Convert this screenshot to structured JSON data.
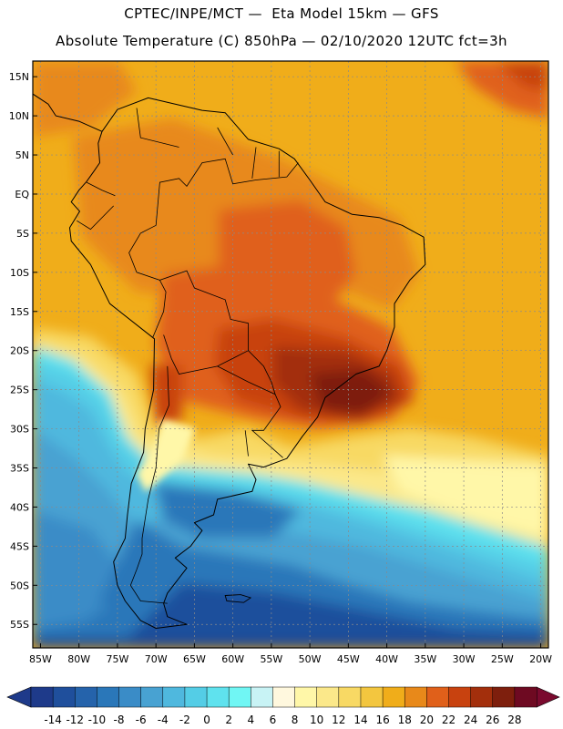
{
  "header": {
    "line1": "CPTEC/INPE/MCT —  Eta Model 15km — GFS",
    "line2": "Absolute Temperature (C) 850hPa — 02/10/2020 12UTC fct=3h"
  },
  "map": {
    "lon_range": [
      -86,
      -19
    ],
    "lat_range": [
      -58,
      17
    ],
    "lat_ticks": [
      {
        "value": 15,
        "label": "15N"
      },
      {
        "value": 10,
        "label": "10N"
      },
      {
        "value": 5,
        "label": "5N"
      },
      {
        "value": 0,
        "label": "EQ"
      },
      {
        "value": -5,
        "label": "5S"
      },
      {
        "value": -10,
        "label": "10S"
      },
      {
        "value": -15,
        "label": "15S"
      },
      {
        "value": -20,
        "label": "20S"
      },
      {
        "value": -25,
        "label": "25S"
      },
      {
        "value": -30,
        "label": "30S"
      },
      {
        "value": -35,
        "label": "35S"
      },
      {
        "value": -40,
        "label": "40S"
      },
      {
        "value": -45,
        "label": "45S"
      },
      {
        "value": -50,
        "label": "50S"
      },
      {
        "value": -55,
        "label": "55S"
      }
    ],
    "lon_ticks": [
      {
        "value": -85,
        "label": "85W"
      },
      {
        "value": -80,
        "label": "80W"
      },
      {
        "value": -75,
        "label": "75W"
      },
      {
        "value": -70,
        "label": "70W"
      },
      {
        "value": -65,
        "label": "65W"
      },
      {
        "value": -60,
        "label": "60W"
      },
      {
        "value": -55,
        "label": "55W"
      },
      {
        "value": -50,
        "label": "50W"
      },
      {
        "value": -45,
        "label": "45W"
      },
      {
        "value": -40,
        "label": "40W"
      },
      {
        "value": -35,
        "label": "35W"
      },
      {
        "value": -30,
        "label": "30W"
      },
      {
        "value": -25,
        "label": "25W"
      },
      {
        "value": -20,
        "label": "20W"
      }
    ],
    "grid": true,
    "coastline": [
      [
        -77,
        8
      ],
      [
        -75,
        10.8
      ],
      [
        -71,
        12.3
      ],
      [
        -64,
        10.7
      ],
      [
        -61,
        10.4
      ],
      [
        -58,
        7
      ],
      [
        -54,
        5.8
      ],
      [
        -52,
        4.5
      ],
      [
        -50,
        1.8
      ],
      [
        -48,
        -1
      ],
      [
        -44.5,
        -2.6
      ],
      [
        -41,
        -3
      ],
      [
        -38,
        -4
      ],
      [
        -35.2,
        -5.5
      ],
      [
        -35,
        -9
      ],
      [
        -37,
        -11
      ],
      [
        -39,
        -14
      ],
      [
        -39,
        -17
      ],
      [
        -40,
        -20
      ],
      [
        -41,
        -22
      ],
      [
        -44,
        -23
      ],
      [
        -48,
        -26
      ],
      [
        -49,
        -28.5
      ],
      [
        -51,
        -31
      ],
      [
        -53,
        -33.8
      ],
      [
        -56,
        -34.9
      ],
      [
        -58,
        -34.5
      ],
      [
        -57,
        -36.5
      ],
      [
        -57.5,
        -38
      ],
      [
        -62,
        -39
      ],
      [
        -62.5,
        -41
      ],
      [
        -65,
        -42
      ],
      [
        -64,
        -43
      ],
      [
        -65.5,
        -45
      ],
      [
        -67.5,
        -46.5
      ],
      [
        -66,
        -47.8
      ],
      [
        -68.5,
        -51
      ],
      [
        -69,
        -52.3
      ],
      [
        -68.5,
        -54
      ],
      [
        -66,
        -55
      ],
      [
        -70,
        -55.5
      ],
      [
        -72,
        -54.5
      ],
      [
        -74,
        -52
      ],
      [
        -75,
        -50
      ],
      [
        -75.5,
        -47
      ],
      [
        -74,
        -44
      ],
      [
        -73.7,
        -41
      ],
      [
        -73.2,
        -37
      ],
      [
        -71.6,
        -33
      ],
      [
        -71.4,
        -30
      ],
      [
        -70.3,
        -25
      ],
      [
        -70.2,
        -18.5
      ],
      [
        -71.5,
        -17.5
      ],
      [
        -76,
        -14
      ],
      [
        -78.5,
        -9
      ],
      [
        -81,
        -6
      ],
      [
        -81.2,
        -4.3
      ],
      [
        -79.9,
        -2.2
      ],
      [
        -81,
        -1
      ],
      [
        -80,
        0.5
      ],
      [
        -79,
        1.6
      ],
      [
        -78,
        3
      ],
      [
        -77.3,
        4
      ],
      [
        -77.5,
        6.5
      ],
      [
        -77,
        8
      ]
    ],
    "central_america": [
      [
        -77,
        8
      ],
      [
        -80,
        9.3
      ],
      [
        -83,
        10
      ],
      [
        -84,
        11.5
      ],
      [
        -86,
        12.8
      ],
      [
        -86,
        15.5
      ]
    ],
    "borders": [
      [
        [
          -60,
          5
        ],
        [
          -62,
          8.5
        ]
      ],
      [
        [
          -57,
          6
        ],
        [
          -57.5,
          2
        ]
      ],
      [
        [
          -54,
          5.5
        ],
        [
          -54,
          2.2
        ]
      ],
      [
        [
          -51.5,
          4
        ],
        [
          -53,
          2.2
        ],
        [
          -57,
          1.8
        ],
        [
          -60,
          1.3
        ],
        [
          -61,
          4.5
        ],
        [
          -64,
          4
        ],
        [
          -66,
          1
        ],
        [
          -67,
          2
        ],
        [
          -69.5,
          1.5
        ],
        [
          -70,
          -4
        ],
        [
          -72,
          -5
        ],
        [
          -73.5,
          -7.5
        ],
        [
          -72.5,
          -10
        ],
        [
          -69.5,
          -11
        ],
        [
          -66,
          -9.8
        ],
        [
          -65,
          -12
        ],
        [
          -61,
          -13.5
        ],
        [
          -60.3,
          -16
        ],
        [
          -58,
          -16.5
        ],
        [
          -58,
          -20
        ],
        [
          -56,
          -22
        ],
        [
          -55,
          -24
        ],
        [
          -54.5,
          -25.6
        ],
        [
          -53.8,
          -27.2
        ],
        [
          -56,
          -30.2
        ],
        [
          -57.5,
          -30.2
        ],
        [
          -53.5,
          -33.7
        ]
      ],
      [
        [
          -67,
          6
        ],
        [
          -72,
          7.2
        ],
        [
          -72.5,
          11
        ]
      ],
      [
        [
          -79,
          1.5
        ],
        [
          -77,
          0.5
        ],
        [
          -75.3,
          -0.2
        ]
      ],
      [
        [
          -80.3,
          -3.4
        ],
        [
          -78.5,
          -4.5
        ],
        [
          -75.5,
          -1.5
        ]
      ],
      [
        [
          -70.4,
          -18.3
        ],
        [
          -69,
          -15
        ],
        [
          -68.7,
          -12.5
        ],
        [
          -69.5,
          -11
        ]
      ],
      [
        [
          -69,
          -18
        ],
        [
          -68,
          -21
        ],
        [
          -67,
          -23
        ],
        [
          -62,
          -22
        ],
        [
          -58,
          -20
        ]
      ],
      [
        [
          -62,
          -22
        ],
        [
          -58,
          -24
        ],
        [
          -54.5,
          -25.6
        ]
      ],
      [
        [
          -68.5,
          -22
        ],
        [
          -68.3,
          -27
        ],
        [
          -69.6,
          -30
        ],
        [
          -70,
          -35
        ],
        [
          -71,
          -39
        ],
        [
          -71.8,
          -44
        ],
        [
          -71.8,
          -46
        ],
        [
          -72.5,
          -48
        ],
        [
          -73.3,
          -50
        ],
        [
          -72,
          -52
        ],
        [
          -68.5,
          -52.3
        ]
      ],
      [
        [
          -58,
          -33.5
        ],
        [
          -58.4,
          -30.2
        ]
      ]
    ],
    "falklands": [
      [
        -61,
        -51.3
      ],
      [
        -59,
        -51.2
      ],
      [
        -57.7,
        -51.6
      ],
      [
        -58.6,
        -52.2
      ],
      [
        -60.8,
        -52
      ]
    ]
  },
  "colorbar": {
    "labels": [
      "-14",
      "-12",
      "-10",
      "-8",
      "-6",
      "-4",
      "-2",
      "0",
      "2",
      "4",
      "6",
      "8",
      "10",
      "12",
      "14",
      "16",
      "18",
      "20",
      "22",
      "24",
      "26",
      "28"
    ],
    "colors": [
      "#1e3a8a",
      "#1f4f9c",
      "#2563ab",
      "#2a77b9",
      "#3a8cc7",
      "#48a2d2",
      "#4fb8de",
      "#54cde6",
      "#5fe2ee",
      "#70f6f4",
      "#c8f3f5",
      "#fff8de",
      "#fff7a8",
      "#fbe88a",
      "#f8d964",
      "#f3c63f",
      "#f0ad1a",
      "#e8891a",
      "#e0601a",
      "#c8420f",
      "#a32f0c",
      "#7e1f0d",
      "#6e0a22"
    ],
    "left_arrow_color": "#1e3a8a",
    "right_arrow_color": "#7a0a2e"
  }
}
